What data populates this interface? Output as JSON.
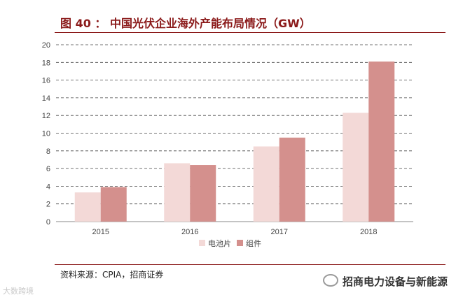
{
  "header": {
    "title": "图 40 ： 中国光伏企业海外产能布局情况（GW）"
  },
  "chart_data": {
    "type": "bar",
    "categories": [
      "2015",
      "2016",
      "2017",
      "2018"
    ],
    "series": [
      {
        "name": "电池片",
        "values": [
          3.3,
          6.6,
          8.5,
          12.3
        ],
        "color": "#f3d9d7"
      },
      {
        "name": "组件",
        "values": [
          3.9,
          6.4,
          9.5,
          18.1
        ],
        "color": "#d4908d"
      }
    ],
    "yticks": [
      "0",
      "2",
      "4",
      "6",
      "8",
      "10",
      "12",
      "14",
      "16",
      "18",
      "20"
    ],
    "ylim": [
      0,
      20
    ],
    "grid": true,
    "legend": "bottom"
  },
  "footer": {
    "source": "资料来源：CPIA，招商证券",
    "watermark_left": "大数跨境",
    "watermark_right": "招商电力设备与新能源"
  }
}
